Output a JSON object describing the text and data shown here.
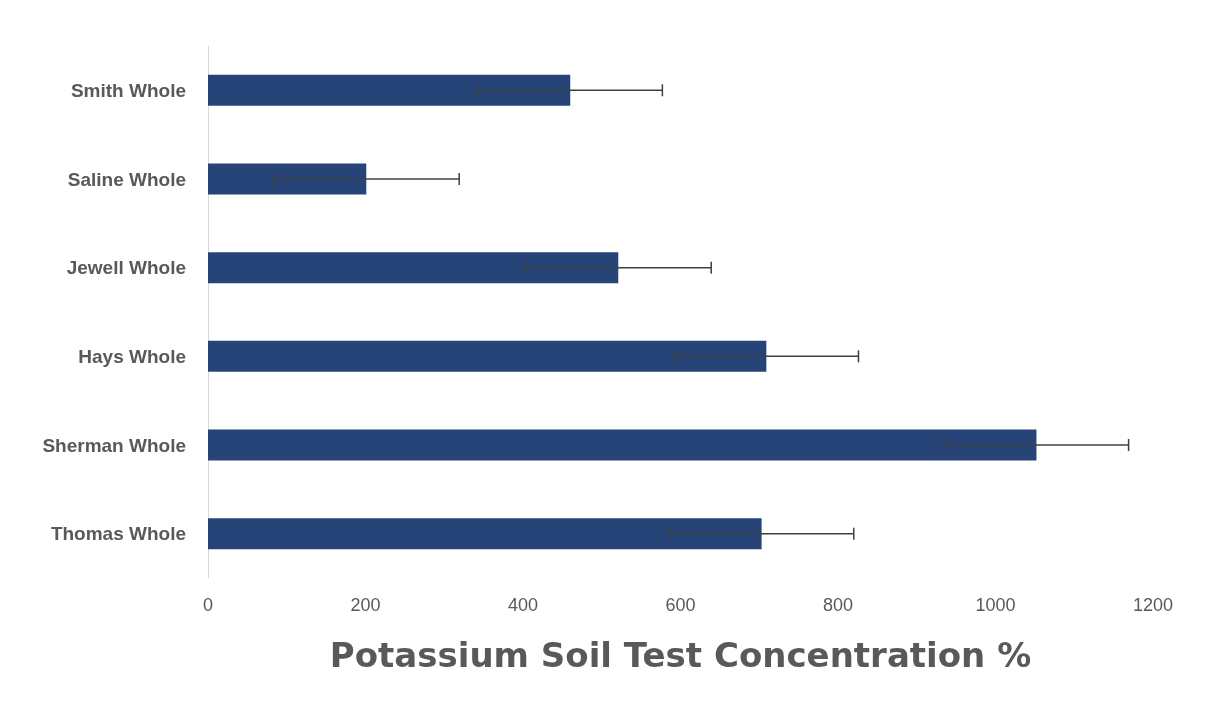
{
  "chart_data": {
    "type": "bar",
    "orientation": "horizontal",
    "xlabel": "Potassium Soil Test Concentration %",
    "categories": [
      "Smith Whole",
      "Saline Whole",
      "Jewell Whole",
      "Hays Whole",
      "Sherman Whole",
      "Thomas Whole"
    ],
    "values": [
      460,
      201,
      521,
      709,
      1052,
      703
    ],
    "errors": [
      117,
      118,
      118,
      117,
      117,
      117
    ],
    "color": "#264478",
    "xlim": [
      0,
      1200
    ],
    "xticks": [
      0,
      200,
      400,
      600,
      800,
      1000,
      1200
    ],
    "grid": false
  }
}
